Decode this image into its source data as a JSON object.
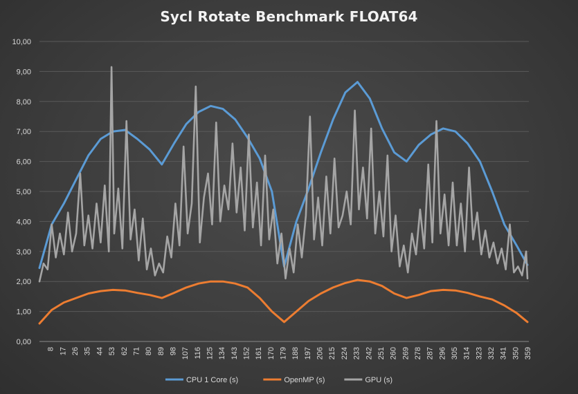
{
  "chart_data": {
    "type": "line",
    "title": "Sycl Rotate Benchmark FLOAT64",
    "xlabel": "",
    "ylabel": "",
    "ylim": [
      0,
      10
    ],
    "y_ticks": [
      "0,00",
      "1,00",
      "2,00",
      "3,00",
      "4,00",
      "5,00",
      "6,00",
      "7,00",
      "8,00",
      "9,00",
      "10,00"
    ],
    "x_ticks": [
      8,
      17,
      26,
      35,
      44,
      53,
      62,
      71,
      80,
      89,
      98,
      107,
      116,
      125,
      134,
      143,
      152,
      161,
      170,
      179,
      188,
      197,
      206,
      215,
      224,
      233,
      242,
      251,
      260,
      269,
      278,
      287,
      296,
      305,
      314,
      323,
      332,
      341,
      350,
      359
    ],
    "xlim": [
      0,
      360
    ],
    "grid": true,
    "legend_position": "bottom",
    "series": [
      {
        "name": "CPU 1 Core (s)",
        "color": "#5b9bd5",
        "x": [
          0,
          9,
          18,
          27,
          36,
          45,
          54,
          63,
          72,
          81,
          90,
          99,
          108,
          117,
          126,
          135,
          144,
          153,
          162,
          171,
          180,
          189,
          198,
          207,
          216,
          225,
          234,
          243,
          252,
          261,
          270,
          279,
          288,
          297,
          306,
          315,
          324,
          333,
          342,
          351,
          359
        ],
        "values": [
          2.45,
          3.9,
          4.6,
          5.4,
          6.2,
          6.75,
          7.0,
          7.05,
          6.75,
          6.4,
          5.9,
          6.6,
          7.25,
          7.65,
          7.85,
          7.75,
          7.4,
          6.8,
          6.1,
          5.0,
          2.5,
          4.0,
          5.1,
          6.3,
          7.4,
          8.3,
          8.65,
          8.1,
          7.1,
          6.3,
          6.0,
          6.55,
          6.9,
          7.1,
          7.0,
          6.6,
          6.0,
          5.0,
          3.9,
          3.2,
          2.55
        ]
      },
      {
        "name": "OpenMP (s)",
        "color": "#ed7d31",
        "x": [
          0,
          9,
          18,
          27,
          36,
          45,
          54,
          63,
          72,
          81,
          90,
          99,
          108,
          117,
          126,
          135,
          144,
          153,
          162,
          171,
          180,
          189,
          198,
          207,
          216,
          225,
          234,
          243,
          252,
          261,
          270,
          279,
          288,
          297,
          306,
          315,
          324,
          333,
          342,
          351,
          359
        ],
        "values": [
          0.6,
          1.05,
          1.3,
          1.45,
          1.6,
          1.68,
          1.72,
          1.7,
          1.62,
          1.55,
          1.45,
          1.62,
          1.8,
          1.93,
          2.0,
          2.0,
          1.93,
          1.8,
          1.45,
          1.0,
          0.65,
          1.0,
          1.35,
          1.6,
          1.8,
          1.95,
          2.05,
          2.0,
          1.85,
          1.6,
          1.45,
          1.55,
          1.68,
          1.72,
          1.7,
          1.62,
          1.5,
          1.4,
          1.2,
          0.95,
          0.65
        ]
      },
      {
        "name": "GPU (s)",
        "color": "#a5a5a5",
        "x": [
          0,
          3,
          6,
          9,
          12,
          15,
          18,
          21,
          24,
          27,
          30,
          33,
          36,
          39,
          42,
          45,
          48,
          51,
          53,
          55,
          58,
          61,
          64,
          67,
          70,
          73,
          76,
          79,
          82,
          85,
          88,
          91,
          94,
          97,
          100,
          103,
          106,
          109,
          112,
          115,
          118,
          121,
          124,
          127,
          130,
          133,
          136,
          139,
          142,
          145,
          148,
          151,
          154,
          157,
          160,
          163,
          166,
          169,
          172,
          175,
          178,
          181,
          184,
          187,
          190,
          193,
          196,
          199,
          202,
          205,
          208,
          211,
          214,
          217,
          220,
          223,
          226,
          229,
          232,
          235,
          238,
          241,
          244,
          247,
          250,
          253,
          256,
          259,
          262,
          265,
          268,
          271,
          274,
          277,
          280,
          283,
          286,
          289,
          292,
          295,
          298,
          301,
          304,
          307,
          310,
          313,
          316,
          319,
          322,
          325,
          328,
          331,
          334,
          337,
          340,
          343,
          346,
          349,
          352,
          355,
          358,
          359
        ],
        "values": [
          2.0,
          2.6,
          2.4,
          3.9,
          2.8,
          3.6,
          2.9,
          4.3,
          3.0,
          3.6,
          5.6,
          3.2,
          4.2,
          3.1,
          4.6,
          3.3,
          5.2,
          3.0,
          9.15,
          3.6,
          5.1,
          3.1,
          7.35,
          3.4,
          4.4,
          2.7,
          4.1,
          2.4,
          3.1,
          2.2,
          2.6,
          2.3,
          3.5,
          2.8,
          4.6,
          3.2,
          6.5,
          3.6,
          4.6,
          8.5,
          3.3,
          4.8,
          5.6,
          3.9,
          7.3,
          4.0,
          5.2,
          4.4,
          6.6,
          4.3,
          5.8,
          3.7,
          6.9,
          3.8,
          5.3,
          3.2,
          6.2,
          3.4,
          4.4,
          2.6,
          3.6,
          2.1,
          3.1,
          2.3,
          3.9,
          2.8,
          4.2,
          7.5,
          3.4,
          4.8,
          3.2,
          5.5,
          3.6,
          6.1,
          3.8,
          4.2,
          5.0,
          3.9,
          7.7,
          4.4,
          5.8,
          4.1,
          7.1,
          3.6,
          5.0,
          3.5,
          6.2,
          3.0,
          4.2,
          2.5,
          3.2,
          2.3,
          3.6,
          2.9,
          4.4,
          3.1,
          5.9,
          3.3,
          7.35,
          3.6,
          4.9,
          3.2,
          5.3,
          3.2,
          4.6,
          3.0,
          5.8,
          3.4,
          4.3,
          2.9,
          3.7,
          2.8,
          3.3,
          2.6,
          3.1,
          2.4,
          3.9,
          2.3,
          2.5,
          2.2,
          3.0,
          2.1
        ]
      }
    ]
  }
}
